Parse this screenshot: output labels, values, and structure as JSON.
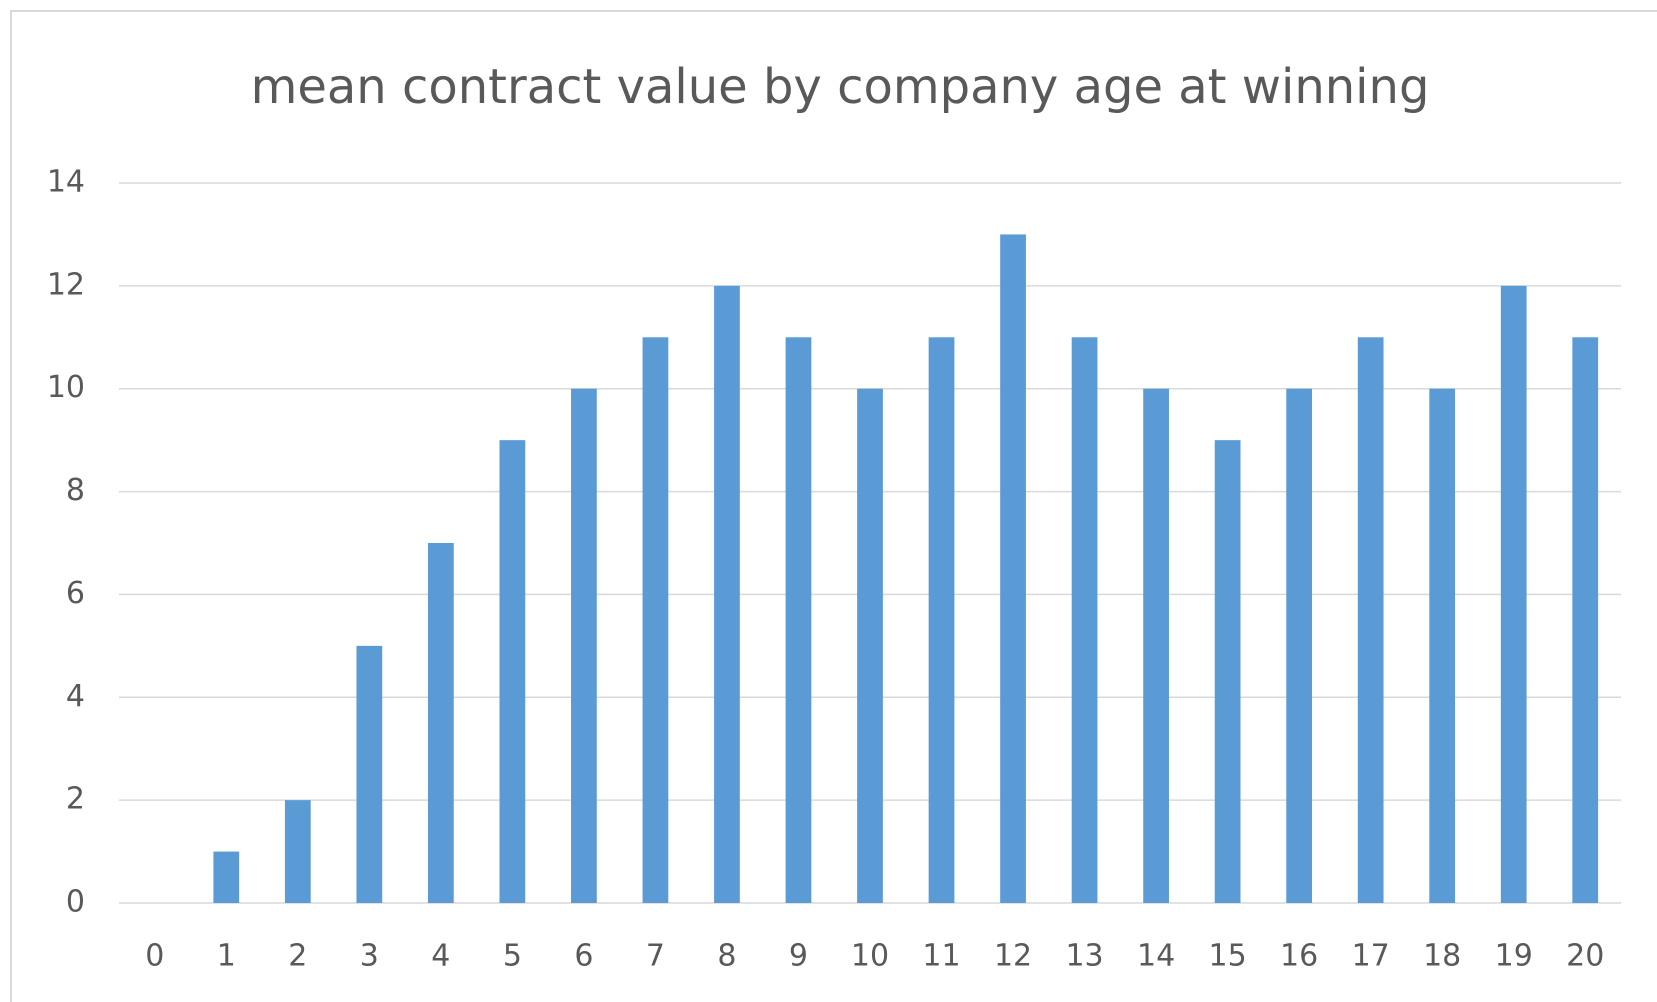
{
  "chart_data": {
    "type": "bar",
    "title": "mean contract value by company age at winning",
    "categories": [
      "0",
      "1",
      "2",
      "3",
      "4",
      "5",
      "6",
      "7",
      "8",
      "9",
      "10",
      "11",
      "12",
      "13",
      "14",
      "15",
      "16",
      "17",
      "18",
      "19",
      "20"
    ],
    "values": [
      0,
      1,
      2,
      5,
      7,
      9,
      10,
      11,
      12,
      11,
      10,
      11,
      13,
      11,
      10,
      9,
      10,
      11,
      10,
      12,
      11
    ],
    "color": "#5b9bd5",
    "ylim": [
      0,
      14
    ],
    "yticks": [
      0,
      2,
      4,
      6,
      8,
      10,
      12,
      14
    ],
    "grid": true
  }
}
